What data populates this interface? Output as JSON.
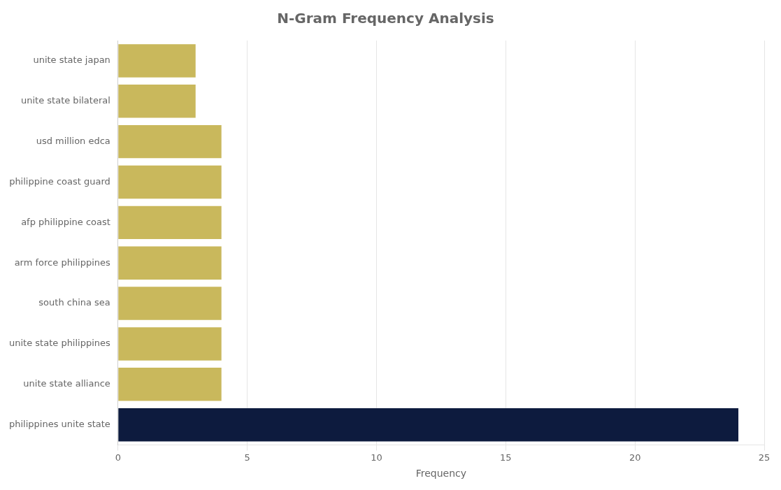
{
  "chart_data": {
    "type": "bar",
    "orientation": "horizontal",
    "title": "N-Gram Frequency Analysis",
    "categories": [
      "unite state japan",
      "unite state bilateral",
      "usd million edca",
      "philippine coast guard",
      "afp philippine coast",
      "arm force philippines",
      "south china sea",
      "unite state philippines",
      "unite state alliance",
      "philippines unite state"
    ],
    "values": [
      3,
      3,
      4,
      4,
      4,
      4,
      4,
      4,
      4,
      24
    ],
    "colors": [
      "#c9b85c",
      "#c9b85c",
      "#c9b85c",
      "#c9b85c",
      "#c9b85c",
      "#c9b85c",
      "#c9b85c",
      "#c9b85c",
      "#c9b85c",
      "#0d1b3e"
    ],
    "xlabel": "Frequency",
    "xlim": [
      0,
      25
    ],
    "xticks": [
      0,
      5,
      10,
      15,
      20,
      25
    ],
    "grid": true
  }
}
